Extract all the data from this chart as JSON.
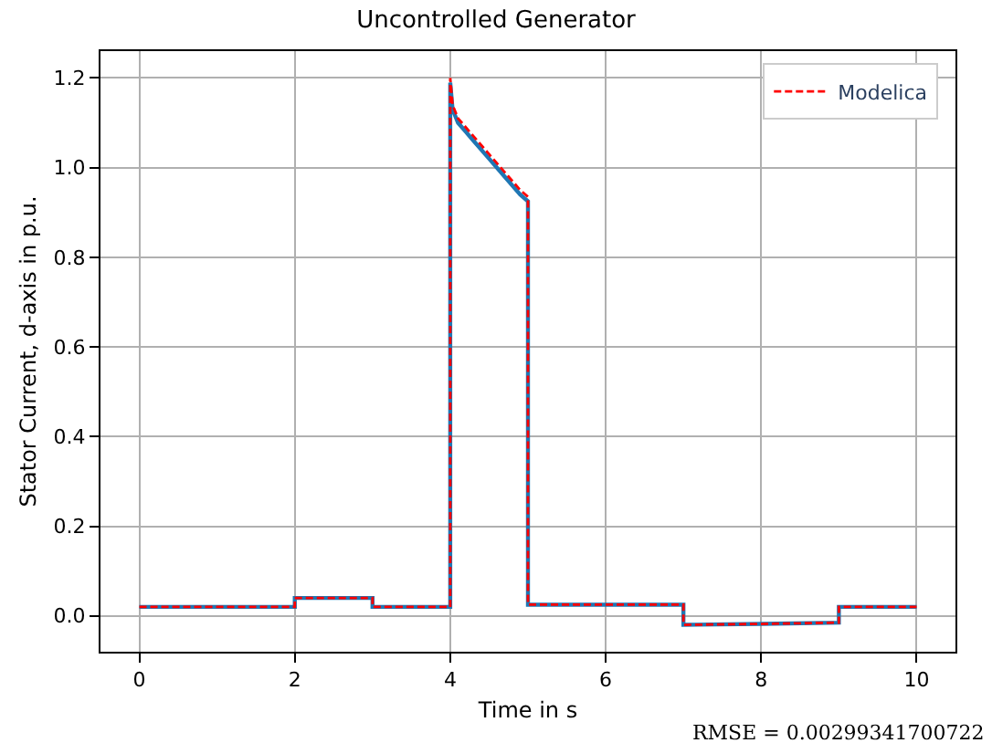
{
  "chart_data": {
    "type": "line",
    "title": "Uncontrolled Generator",
    "xlabel": "Time in s",
    "ylabel": "Stator Current, d-axis in p.u.",
    "annotations": [
      "RMSE = 0.00299341700722"
    ],
    "series": [
      {
        "name": "Modelica",
        "color": "#ff0000",
        "line_style": "dashed",
        "x": [
          0,
          2,
          2,
          3,
          3,
          4,
          4,
          4.03,
          4.1,
          4.3,
          4.5,
          4.7,
          4.9,
          5,
          5,
          7,
          7,
          8,
          9,
          9,
          10
        ],
        "values": [
          0.02,
          0.02,
          0.04,
          0.04,
          0.02,
          0.02,
          1.2,
          1.14,
          1.11,
          1.07,
          1.03,
          0.99,
          0.95,
          0.935,
          0.025,
          0.025,
          -0.02,
          -0.018,
          -0.015,
          0.02,
          0.02
        ]
      },
      {
        "color": "#1f77b4",
        "line_style": "solid",
        "x": [
          0,
          2,
          2,
          3,
          3,
          4,
          4,
          4.03,
          4.1,
          4.3,
          4.5,
          4.7,
          4.9,
          5,
          5,
          7,
          7,
          8,
          9,
          9,
          10
        ],
        "values": [
          0.02,
          0.02,
          0.04,
          0.04,
          0.02,
          0.02,
          1.19,
          1.13,
          1.1,
          1.06,
          1.02,
          0.98,
          0.94,
          0.925,
          0.025,
          0.025,
          -0.02,
          -0.018,
          -0.015,
          0.02,
          0.02
        ]
      }
    ],
    "xlim": [
      -0.5,
      10.5
    ],
    "ylim": [
      -0.08,
      1.26
    ],
    "xticks": [
      0,
      2,
      4,
      6,
      8,
      10
    ],
    "yticks": [
      {
        "value": 0,
        "label": "0.0"
      },
      0.2,
      0.4,
      0.6,
      0.8,
      {
        "value": 1,
        "label": "1.0"
      },
      1.2
    ],
    "grid": true,
    "legend": "top right",
    "marker": "none"
  }
}
